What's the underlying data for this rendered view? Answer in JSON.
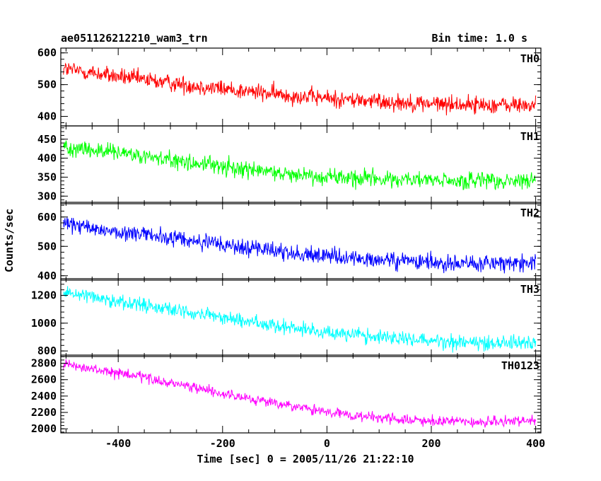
{
  "chart_data": {
    "type": "line",
    "title_left": "ae051126212210_wam3_trn",
    "title_right": "Bin time: 1.0 s",
    "xlabel": "Time [sec] 0 = 2005/11/26 21:22:10",
    "ylabel": "Counts/sec",
    "xlim": [
      -510,
      410
    ],
    "x_ticks": [
      -400,
      -200,
      0,
      200,
      400
    ],
    "bin_time_s": 1.0,
    "panels": [
      {
        "name": "TH0",
        "color": "#ff0000",
        "ylim": [
          370,
          615
        ],
        "y_ticks": [
          400,
          500,
          600
        ],
        "trend": [
          [
            -505,
            550
          ],
          [
            -400,
            525
          ],
          [
            -300,
            505
          ],
          [
            -200,
            487
          ],
          [
            -100,
            470
          ],
          [
            0,
            457
          ],
          [
            100,
            447
          ],
          [
            200,
            440
          ],
          [
            300,
            436
          ],
          [
            400,
            435
          ]
        ],
        "noise": 26
      },
      {
        "name": "TH1",
        "color": "#00ff00",
        "ylim": [
          280,
          485
        ],
        "y_ticks": [
          300,
          350,
          400,
          450
        ],
        "trend": [
          [
            -505,
            432
          ],
          [
            -400,
            412
          ],
          [
            -300,
            395
          ],
          [
            -200,
            378
          ],
          [
            -100,
            362
          ],
          [
            0,
            352
          ],
          [
            100,
            345
          ],
          [
            200,
            341
          ],
          [
            300,
            338
          ],
          [
            400,
            340
          ]
        ],
        "noise": 22
      },
      {
        "name": "TH2",
        "color": "#0000ff",
        "ylim": [
          385,
          650
        ],
        "y_ticks": [
          400,
          500,
          600
        ],
        "trend": [
          [
            -505,
            575
          ],
          [
            -400,
            550
          ],
          [
            -300,
            528
          ],
          [
            -200,
            505
          ],
          [
            -100,
            485
          ],
          [
            0,
            465
          ],
          [
            100,
            452
          ],
          [
            200,
            445
          ],
          [
            300,
            442
          ],
          [
            400,
            443
          ]
        ],
        "noise": 28
      },
      {
        "name": "TH3",
        "color": "#00ffff",
        "ylim": [
          760,
          1320
        ],
        "y_ticks": [
          800,
          1000,
          1200
        ],
        "trend": [
          [
            -505,
            1230
          ],
          [
            -400,
            1160
          ],
          [
            -300,
            1100
          ],
          [
            -200,
            1040
          ],
          [
            -100,
            985
          ],
          [
            0,
            935
          ],
          [
            100,
            900
          ],
          [
            200,
            875
          ],
          [
            300,
            860
          ],
          [
            400,
            862
          ]
        ],
        "noise": 50
      },
      {
        "name": "TH0123",
        "color": "#ff00ff",
        "ylim": [
          1950,
          2900
        ],
        "y_ticks": [
          2000,
          2200,
          2400,
          2600,
          2800
        ],
        "trend": [
          [
            -505,
            2780
          ],
          [
            -400,
            2680
          ],
          [
            -300,
            2560
          ],
          [
            -200,
            2430
          ],
          [
            -100,
            2310
          ],
          [
            0,
            2200
          ],
          [
            100,
            2130
          ],
          [
            200,
            2090
          ],
          [
            300,
            2080
          ],
          [
            400,
            2100
          ]
        ],
        "noise": 60
      }
    ]
  }
}
